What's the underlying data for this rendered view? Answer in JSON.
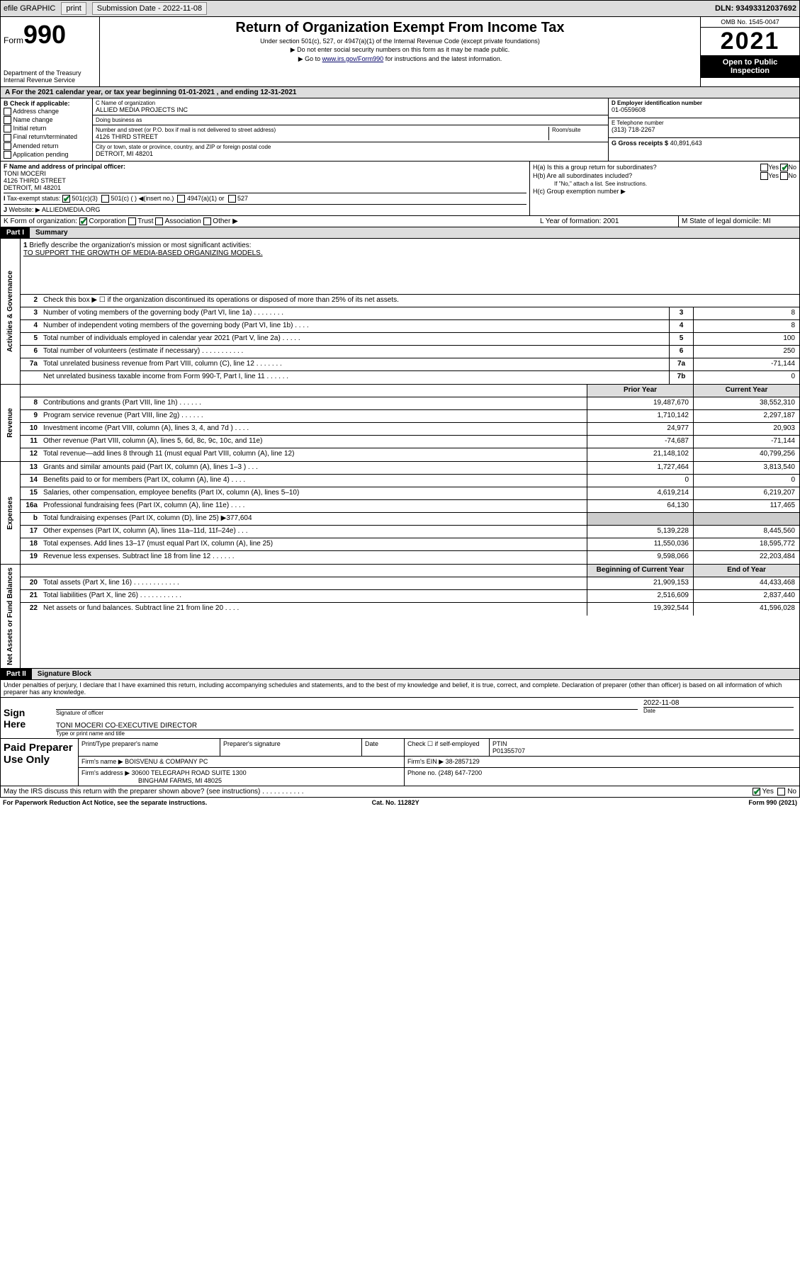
{
  "topbar": {
    "efile": "efile GRAPHIC",
    "print": "print",
    "subdate_label": "Submission Date - ",
    "subdate": "2022-11-08",
    "dln_label": "DLN: ",
    "dln": "93493312037692"
  },
  "header": {
    "form_prefix": "Form",
    "form_num": "990",
    "dept": "Department of the Treasury",
    "irs": "Internal Revenue Service",
    "title": "Return of Organization Exempt From Income Tax",
    "sub1": "Under section 501(c), 527, or 4947(a)(1) of the Internal Revenue Code (except private foundations)",
    "sub2": "▶ Do not enter social security numbers on this form as it may be made public.",
    "sub3_pre": "▶ Go to ",
    "sub3_link": "www.irs.gov/Form990",
    "sub3_post": " for instructions and the latest information.",
    "omb": "OMB No. 1545-0047",
    "year": "2021",
    "open": "Open to Public Inspection"
  },
  "period": "For the 2021 calendar year, or tax year beginning 01-01-2021   , and ending 12-31-2021",
  "B": {
    "label": "B Check if applicable:",
    "opts": [
      "Address change",
      "Name change",
      "Initial return",
      "Final return/terminated",
      "Amended return",
      "Application pending"
    ]
  },
  "C": {
    "name_hdr": "C Name of organization",
    "name": "ALLIED MEDIA PROJECTS INC",
    "dba_hdr": "Doing business as",
    "dba": "",
    "addr_hdr": "Number and street (or P.O. box if mail is not delivered to street address)",
    "room_hdr": "Room/suite",
    "addr": "4126 THIRD STREET",
    "city_hdr": "City or town, state or province, country, and ZIP or foreign postal code",
    "city": "DETROIT, MI  48201"
  },
  "D": {
    "hdr": "D Employer identification number",
    "val": "01-0559608"
  },
  "E": {
    "hdr": "E Telephone number",
    "val": "(313) 718-2267"
  },
  "G": {
    "hdr": "G Gross receipts $",
    "val": "40,891,643"
  },
  "F": {
    "hdr": "F Name and address of principal officer:",
    "name": "TONI MOCERI",
    "addr1": "4126 THIRD STREET",
    "addr2": "DETROIT, MI  48201"
  },
  "H": {
    "a": "H(a)  Is this a group return for subordinates?",
    "b": "H(b)  Are all subordinates included?",
    "b_note": "If \"No,\" attach a list. See instructions.",
    "c": "H(c)  Group exemption number ▶",
    "yes": "Yes",
    "no": "No"
  },
  "I": {
    "label": "Tax-exempt status:",
    "c3": "501(c)(3)",
    "c": "501(c) (   ) ◀(insert no.)",
    "a1": "4947(a)(1) or",
    "s527": "527"
  },
  "J": {
    "label": "Website: ▶",
    "val": "ALLIEDMEDIA.ORG"
  },
  "K": {
    "label": "K Form of organization:",
    "corp": "Corporation",
    "trust": "Trust",
    "assoc": "Association",
    "other": "Other ▶"
  },
  "L": {
    "label": "L Year of formation:",
    "val": "2001"
  },
  "M": {
    "label": "M State of legal domicile:",
    "val": "MI"
  },
  "partI": {
    "num": "Part I",
    "title": "Summary"
  },
  "summary": {
    "q1_label": "Briefly describe the organization's mission or most significant activities:",
    "q1_val": "TO SUPPORT THE GROWTH OF MEDIA-BASED ORGANIZING MODELS.",
    "q2": "Check this box ▶ ☐  if the organization discontinued its operations or disposed of more than 25% of its net assets.",
    "rows_single": [
      {
        "n": "3",
        "d": "Number of voting members of the governing body (Part VI, line 1a)  .  .  .  .  .  .  .  .",
        "b": "3",
        "v": "8"
      },
      {
        "n": "4",
        "d": "Number of independent voting members of the governing body (Part VI, line 1b)  .  .  .  .",
        "b": "4",
        "v": "8"
      },
      {
        "n": "5",
        "d": "Total number of individuals employed in calendar year 2021 (Part V, line 2a)  .  .  .  .  .",
        "b": "5",
        "v": "100"
      },
      {
        "n": "6",
        "d": "Total number of volunteers (estimate if necessary)  .  .  .  .  .  .  .  .  .  .  .",
        "b": "6",
        "v": "250"
      },
      {
        "n": "7a",
        "d": "Total unrelated business revenue from Part VIII, column (C), line 12  .  .  .  .  .  .  .",
        "b": "7a",
        "v": "-71,144"
      },
      {
        "n": "",
        "d": "Net unrelated business taxable income from Form 990-T, Part I, line 11  .  .  .  .  .  .",
        "b": "7b",
        "v": "0"
      }
    ],
    "col_prior": "Prior Year",
    "col_curr": "Current Year",
    "revenue": [
      {
        "n": "8",
        "d": "Contributions and grants (Part VIII, line 1h)  .  .  .  .  .  .",
        "p": "19,487,670",
        "c": "38,552,310"
      },
      {
        "n": "9",
        "d": "Program service revenue (Part VIII, line 2g)  .  .  .  .  .  .",
        "p": "1,710,142",
        "c": "2,297,187"
      },
      {
        "n": "10",
        "d": "Investment income (Part VIII, column (A), lines 3, 4, and 7d )  .  .  .  .",
        "p": "24,977",
        "c": "20,903"
      },
      {
        "n": "11",
        "d": "Other revenue (Part VIII, column (A), lines 5, 6d, 8c, 9c, 10c, and 11e)",
        "p": "-74,687",
        "c": "-71,144"
      },
      {
        "n": "12",
        "d": "Total revenue—add lines 8 through 11 (must equal Part VIII, column (A), line 12)",
        "p": "21,148,102",
        "c": "40,799,256"
      }
    ],
    "expenses": [
      {
        "n": "13",
        "d": "Grants and similar amounts paid (Part IX, column (A), lines 1–3 )  .  .  .",
        "p": "1,727,464",
        "c": "3,813,540"
      },
      {
        "n": "14",
        "d": "Benefits paid to or for members (Part IX, column (A), line 4)  .  .  .  .",
        "p": "0",
        "c": "0"
      },
      {
        "n": "15",
        "d": "Salaries, other compensation, employee benefits (Part IX, column (A), lines 5–10)",
        "p": "4,619,214",
        "c": "6,219,207"
      },
      {
        "n": "16a",
        "d": "Professional fundraising fees (Part IX, column (A), line 11e)  .  .  .  .",
        "p": "64,130",
        "c": "117,465"
      },
      {
        "n": "b",
        "d": "Total fundraising expenses (Part IX, column (D), line 25) ▶377,604",
        "p": "",
        "c": "",
        "shade": true
      },
      {
        "n": "17",
        "d": "Other expenses (Part IX, column (A), lines 11a–11d, 11f–24e)  .  .  .",
        "p": "5,139,228",
        "c": "8,445,560"
      },
      {
        "n": "18",
        "d": "Total expenses. Add lines 13–17 (must equal Part IX, column (A), line 25)",
        "p": "11,550,036",
        "c": "18,595,772"
      },
      {
        "n": "19",
        "d": "Revenue less expenses. Subtract line 18 from line 12  .  .  .  .  .  .",
        "p": "9,598,066",
        "c": "22,203,484"
      }
    ],
    "col_begin": "Beginning of Current Year",
    "col_end": "End of Year",
    "netassets": [
      {
        "n": "20",
        "d": "Total assets (Part X, line 16)  .  .  .  .  .  .  .  .  .  .  .  .",
        "p": "21,909,153",
        "c": "44,433,468"
      },
      {
        "n": "21",
        "d": "Total liabilities (Part X, line 26)  .  .  .  .  .  .  .  .  .  .  .",
        "p": "2,516,609",
        "c": "2,837,440"
      },
      {
        "n": "22",
        "d": "Net assets or fund balances. Subtract line 21 from line 20  .  .  .  .",
        "p": "19,392,544",
        "c": "41,596,028"
      }
    ],
    "sidelabels": {
      "gov": "Activities & Governance",
      "rev": "Revenue",
      "exp": "Expenses",
      "net": "Net Assets or Fund Balances"
    }
  },
  "partII": {
    "num": "Part II",
    "title": "Signature Block"
  },
  "sig": {
    "perjury": "Under penalties of perjury, I declare that I have examined this return, including accompanying schedules and statements, and to the best of my knowledge and belief, it is true, correct, and complete. Declaration of preparer (other than officer) is based on all information of which preparer has any knowledge.",
    "sign_here": "Sign Here",
    "sig_officer": "Signature of officer",
    "date_lbl": "Date",
    "date_val": "2022-11-08",
    "officer_name": "TONI MOCERI CO-EXECUTIVE DIRECTOR",
    "type_name": "Type or print name and title"
  },
  "prep": {
    "lbl": "Paid Preparer Use Only",
    "h_name": "Print/Type preparer's name",
    "h_sig": "Preparer's signature",
    "h_date": "Date",
    "h_check": "Check ☐ if self-employed",
    "h_ptin": "PTIN",
    "ptin": "P01355707",
    "firm_lbl": "Firm's name   ▶",
    "firm": "BOISVENU & COMPANY PC",
    "ein_lbl": "Firm's EIN ▶",
    "ein": "38-2857129",
    "addr_lbl": "Firm's address ▶",
    "addr1": "30600 TELEGRAPH ROAD SUITE 1300",
    "addr2": "BINGHAM FARMS, MI  48025",
    "phone_lbl": "Phone no.",
    "phone": "(248) 647-7200"
  },
  "discuss": {
    "q": "May the IRS discuss this return with the preparer shown above? (see instructions)  .  .  .  .  .  .  .  .  .  .  .",
    "yes": "Yes",
    "no": "No"
  },
  "footer": {
    "pra": "For Paperwork Reduction Act Notice, see the separate instructions.",
    "cat": "Cat. No. 11282Y",
    "form": "Form 990 (2021)"
  }
}
